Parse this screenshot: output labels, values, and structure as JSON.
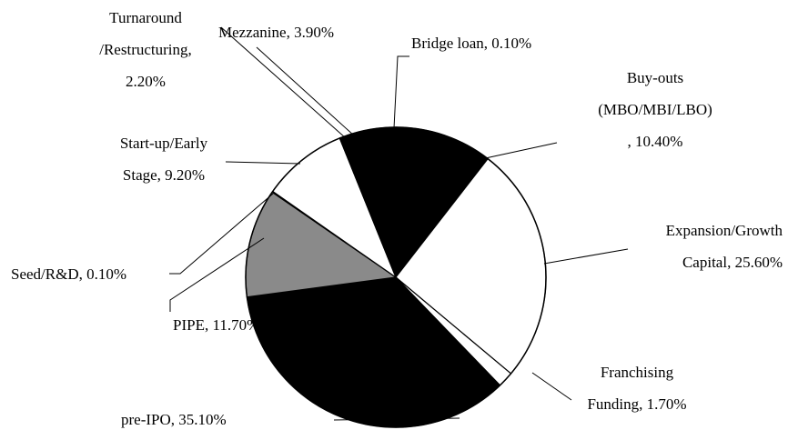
{
  "chart_data": {
    "type": "pie",
    "categories": [
      "Bridge loan",
      "Buy-outs\n(MBO/MBI/LBO)",
      "Expansion/Growth\nCapital",
      "Franchising\nFunding",
      "pre-IPO",
      "PIPE",
      "Seed/R&D",
      "Start-up/Early\nStage",
      "Turnaround\n/Restructuring",
      "Mezzanine"
    ],
    "values": [
      0.1,
      10.4,
      25.6,
      1.7,
      35.1,
      11.7,
      0.1,
      9.2,
      2.2,
      3.9
    ],
    "value_labels": [
      "0.10%",
      "10.40%",
      "25.60%",
      "1.70%",
      "35.10%",
      "11.70%",
      "0.10%",
      "9.20%",
      "2.20%",
      "3.90%"
    ],
    "label_separator": ", ",
    "colors": [
      "#000000",
      "#000000",
      "#ffffff",
      "#ffffff",
      "#000000",
      "#8a8a8a",
      "#ffffff",
      "#ffffff",
      "#000000",
      "#000000"
    ],
    "start_angle": 0,
    "direction": "clockwise"
  }
}
